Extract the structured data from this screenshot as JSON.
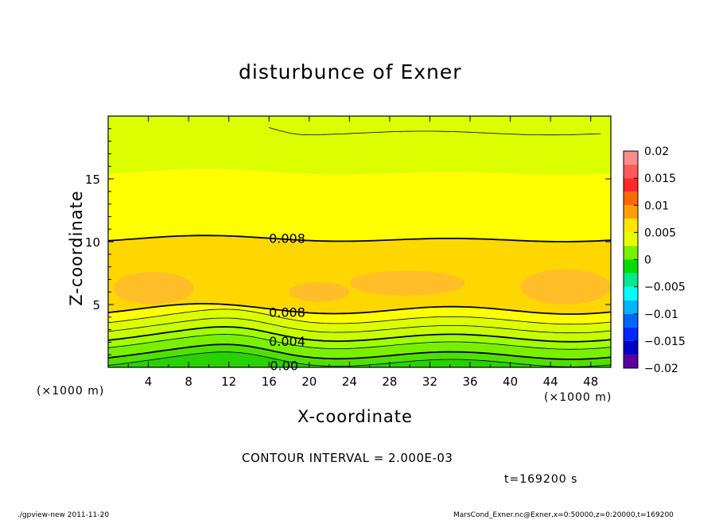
{
  "chart_data": {
    "type": "contour",
    "title": "disturbunce of Exner",
    "xlabel": "X-coordinate",
    "ylabel": "Z-coordinate",
    "x_units": "(×1000 m)",
    "y_units": "(×1000 m)",
    "xlim": [
      0,
      50
    ],
    "ylim": [
      0,
      20
    ],
    "x_ticks": [
      4,
      8,
      12,
      16,
      20,
      24,
      28,
      32,
      36,
      40,
      44,
      48
    ],
    "y_ticks": [
      5,
      10,
      15
    ],
    "contour_interval": "CONTOUR INTERVAL = 2.000E-03",
    "time_label": "t=169200 s",
    "contour_labels": [
      {
        "text": "0.008",
        "x": 17.8,
        "z": 10.3
      },
      {
        "text": "0.008",
        "x": 17.8,
        "z": 4.4
      },
      {
        "text": "0.004",
        "x": 17.8,
        "z": 2.1
      },
      {
        "text": "0.00",
        "x": 17.5,
        "z": 0.15
      }
    ],
    "colorbar": {
      "min": -0.02,
      "max": 0.02,
      "tick_labels": [
        "0.02",
        "0.015",
        "0.01",
        "0.005",
        "0",
        "−0.005",
        "−0.01",
        "−0.015",
        "−0.02"
      ],
      "tick_values": [
        0.02,
        0.015,
        0.01,
        0.005,
        0,
        -0.005,
        -0.01,
        -0.015,
        -0.02
      ],
      "bands": [
        {
          "lo": 0.0175,
          "hi": 0.02,
          "color": "#ff8c8c"
        },
        {
          "lo": 0.015,
          "hi": 0.0175,
          "color": "#ff5a5a"
        },
        {
          "lo": 0.0125,
          "hi": 0.015,
          "color": "#ff2828"
        },
        {
          "lo": 0.01,
          "hi": 0.0125,
          "color": "#ff6a00"
        },
        {
          "lo": 0.0075,
          "hi": 0.01,
          "color": "#ffa000"
        },
        {
          "lo": 0.005,
          "hi": 0.0075,
          "color": "#ffe600"
        },
        {
          "lo": 0.0025,
          "hi": 0.005,
          "color": "#e6ff00"
        },
        {
          "lo": 0.0,
          "hi": 0.0025,
          "color": "#78f000"
        },
        {
          "lo": -0.0025,
          "hi": 0.0,
          "color": "#00dc00"
        },
        {
          "lo": -0.005,
          "hi": -0.0025,
          "color": "#00e88c"
        },
        {
          "lo": -0.0075,
          "hi": -0.005,
          "color": "#00ffff"
        },
        {
          "lo": -0.01,
          "hi": -0.0075,
          "color": "#00b4ff"
        },
        {
          "lo": -0.0125,
          "hi": -0.01,
          "color": "#0064ff"
        },
        {
          "lo": -0.015,
          "hi": -0.0125,
          "color": "#0028ff"
        },
        {
          "lo": -0.0175,
          "hi": -0.015,
          "color": "#0000c8"
        },
        {
          "lo": -0.02,
          "hi": -0.0175,
          "color": "#5a00a0"
        }
      ]
    },
    "field_layers": [
      {
        "name": "top-band",
        "value": 0.005,
        "color": "#dcff00",
        "z_lo": 15.5,
        "z_hi": 20
      },
      {
        "name": "upper-yellow",
        "value": 0.0065,
        "color": "#ffff00",
        "z_lo": 10.2,
        "z_hi": 15.5
      },
      {
        "name": "core-gold",
        "value": 0.0085,
        "color": "#ffd700",
        "z_lo": 4.6,
        "z_hi": 10.2
      },
      {
        "name": "lower-yellow",
        "value": 0.0065,
        "color": "#ffff00",
        "z_lo": 3.8,
        "z_hi": 4.6
      },
      {
        "name": "lower-yellow-green",
        "value": 0.005,
        "color": "#dcff00",
        "z_lo": 3.1,
        "z_hi": 3.8
      },
      {
        "name": "yellow-green",
        "value": 0.004,
        "color": "#c8ff00",
        "z_lo": 2.4,
        "z_hi": 3.1
      },
      {
        "name": "light-green",
        "value": 0.003,
        "color": "#a0ff00",
        "z_lo": 1.8,
        "z_hi": 2.4
      },
      {
        "name": "green",
        "value": 0.002,
        "color": "#78f000",
        "z_lo": 1.0,
        "z_hi": 1.8
      },
      {
        "name": "green-deep",
        "value": 0.001,
        "color": "#50e000",
        "z_lo": 0.4,
        "z_hi": 1.0
      },
      {
        "name": "bottom-green",
        "value": 0.0,
        "color": "#28d200",
        "z_lo": 0,
        "z_hi": 0.4
      }
    ],
    "max_blobs": [
      {
        "x0": 0.5,
        "x1": 8.5,
        "z0": 5.0,
        "z1": 7.6,
        "color": "#ffbe28"
      },
      {
        "x0": 18.0,
        "x1": 24.0,
        "z0": 5.2,
        "z1": 6.8,
        "color": "#ffbe28"
      },
      {
        "x0": 24.0,
        "x1": 35.5,
        "z0": 5.7,
        "z1": 7.7,
        "color": "#ffbe28"
      },
      {
        "x0": 41.0,
        "x1": 50.0,
        "z0": 5.0,
        "z1": 7.8,
        "color": "#ffbe28"
      }
    ]
  },
  "footer": {
    "left": "./gpview-new   2011-11-20",
    "right": "MarsCond_Exner.nc@Exner,x=0:50000,z=0:20000,t=169200"
  }
}
